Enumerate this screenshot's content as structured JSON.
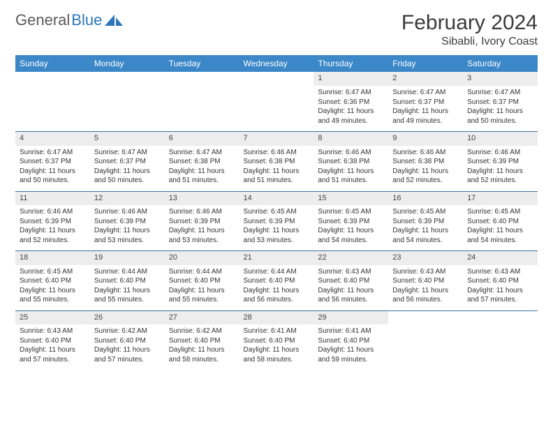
{
  "brand": {
    "part1": "General",
    "part2": "Blue"
  },
  "title": "February 2024",
  "location": "Sibabli, Ivory Coast",
  "colors": {
    "header_bg": "#3b87c8",
    "header_text": "#ffffff",
    "daynum_bg": "#ededed",
    "row_border": "#3b6fa0",
    "logo_gray": "#5a5a5a",
    "logo_blue": "#2d76bb"
  },
  "weekdays": [
    "Sunday",
    "Monday",
    "Tuesday",
    "Wednesday",
    "Thursday",
    "Friday",
    "Saturday"
  ],
  "weeks": [
    {
      "nums": [
        "",
        "",
        "",
        "",
        "1",
        "2",
        "3"
      ],
      "cells": [
        null,
        null,
        null,
        null,
        {
          "sunrise": "Sunrise: 6:47 AM",
          "sunset": "Sunset: 6:36 PM",
          "daylight1": "Daylight: 11 hours",
          "daylight2": "and 49 minutes."
        },
        {
          "sunrise": "Sunrise: 6:47 AM",
          "sunset": "Sunset: 6:37 PM",
          "daylight1": "Daylight: 11 hours",
          "daylight2": "and 49 minutes."
        },
        {
          "sunrise": "Sunrise: 6:47 AM",
          "sunset": "Sunset: 6:37 PM",
          "daylight1": "Daylight: 11 hours",
          "daylight2": "and 50 minutes."
        }
      ]
    },
    {
      "nums": [
        "4",
        "5",
        "6",
        "7",
        "8",
        "9",
        "10"
      ],
      "cells": [
        {
          "sunrise": "Sunrise: 6:47 AM",
          "sunset": "Sunset: 6:37 PM",
          "daylight1": "Daylight: 11 hours",
          "daylight2": "and 50 minutes."
        },
        {
          "sunrise": "Sunrise: 6:47 AM",
          "sunset": "Sunset: 6:37 PM",
          "daylight1": "Daylight: 11 hours",
          "daylight2": "and 50 minutes."
        },
        {
          "sunrise": "Sunrise: 6:47 AM",
          "sunset": "Sunset: 6:38 PM",
          "daylight1": "Daylight: 11 hours",
          "daylight2": "and 51 minutes."
        },
        {
          "sunrise": "Sunrise: 6:46 AM",
          "sunset": "Sunset: 6:38 PM",
          "daylight1": "Daylight: 11 hours",
          "daylight2": "and 51 minutes."
        },
        {
          "sunrise": "Sunrise: 6:46 AM",
          "sunset": "Sunset: 6:38 PM",
          "daylight1": "Daylight: 11 hours",
          "daylight2": "and 51 minutes."
        },
        {
          "sunrise": "Sunrise: 6:46 AM",
          "sunset": "Sunset: 6:38 PM",
          "daylight1": "Daylight: 11 hours",
          "daylight2": "and 52 minutes."
        },
        {
          "sunrise": "Sunrise: 6:46 AM",
          "sunset": "Sunset: 6:39 PM",
          "daylight1": "Daylight: 11 hours",
          "daylight2": "and 52 minutes."
        }
      ]
    },
    {
      "nums": [
        "11",
        "12",
        "13",
        "14",
        "15",
        "16",
        "17"
      ],
      "cells": [
        {
          "sunrise": "Sunrise: 6:46 AM",
          "sunset": "Sunset: 6:39 PM",
          "daylight1": "Daylight: 11 hours",
          "daylight2": "and 52 minutes."
        },
        {
          "sunrise": "Sunrise: 6:46 AM",
          "sunset": "Sunset: 6:39 PM",
          "daylight1": "Daylight: 11 hours",
          "daylight2": "and 53 minutes."
        },
        {
          "sunrise": "Sunrise: 6:46 AM",
          "sunset": "Sunset: 6:39 PM",
          "daylight1": "Daylight: 11 hours",
          "daylight2": "and 53 minutes."
        },
        {
          "sunrise": "Sunrise: 6:45 AM",
          "sunset": "Sunset: 6:39 PM",
          "daylight1": "Daylight: 11 hours",
          "daylight2": "and 53 minutes."
        },
        {
          "sunrise": "Sunrise: 6:45 AM",
          "sunset": "Sunset: 6:39 PM",
          "daylight1": "Daylight: 11 hours",
          "daylight2": "and 54 minutes."
        },
        {
          "sunrise": "Sunrise: 6:45 AM",
          "sunset": "Sunset: 6:39 PM",
          "daylight1": "Daylight: 11 hours",
          "daylight2": "and 54 minutes."
        },
        {
          "sunrise": "Sunrise: 6:45 AM",
          "sunset": "Sunset: 6:40 PM",
          "daylight1": "Daylight: 11 hours",
          "daylight2": "and 54 minutes."
        }
      ]
    },
    {
      "nums": [
        "18",
        "19",
        "20",
        "21",
        "22",
        "23",
        "24"
      ],
      "cells": [
        {
          "sunrise": "Sunrise: 6:45 AM",
          "sunset": "Sunset: 6:40 PM",
          "daylight1": "Daylight: 11 hours",
          "daylight2": "and 55 minutes."
        },
        {
          "sunrise": "Sunrise: 6:44 AM",
          "sunset": "Sunset: 6:40 PM",
          "daylight1": "Daylight: 11 hours",
          "daylight2": "and 55 minutes."
        },
        {
          "sunrise": "Sunrise: 6:44 AM",
          "sunset": "Sunset: 6:40 PM",
          "daylight1": "Daylight: 11 hours",
          "daylight2": "and 55 minutes."
        },
        {
          "sunrise": "Sunrise: 6:44 AM",
          "sunset": "Sunset: 6:40 PM",
          "daylight1": "Daylight: 11 hours",
          "daylight2": "and 56 minutes."
        },
        {
          "sunrise": "Sunrise: 6:43 AM",
          "sunset": "Sunset: 6:40 PM",
          "daylight1": "Daylight: 11 hours",
          "daylight2": "and 56 minutes."
        },
        {
          "sunrise": "Sunrise: 6:43 AM",
          "sunset": "Sunset: 6:40 PM",
          "daylight1": "Daylight: 11 hours",
          "daylight2": "and 56 minutes."
        },
        {
          "sunrise": "Sunrise: 6:43 AM",
          "sunset": "Sunset: 6:40 PM",
          "daylight1": "Daylight: 11 hours",
          "daylight2": "and 57 minutes."
        }
      ]
    },
    {
      "nums": [
        "25",
        "26",
        "27",
        "28",
        "29",
        "",
        ""
      ],
      "cells": [
        {
          "sunrise": "Sunrise: 6:43 AM",
          "sunset": "Sunset: 6:40 PM",
          "daylight1": "Daylight: 11 hours",
          "daylight2": "and 57 minutes."
        },
        {
          "sunrise": "Sunrise: 6:42 AM",
          "sunset": "Sunset: 6:40 PM",
          "daylight1": "Daylight: 11 hours",
          "daylight2": "and 57 minutes."
        },
        {
          "sunrise": "Sunrise: 6:42 AM",
          "sunset": "Sunset: 6:40 PM",
          "daylight1": "Daylight: 11 hours",
          "daylight2": "and 58 minutes."
        },
        {
          "sunrise": "Sunrise: 6:41 AM",
          "sunset": "Sunset: 6:40 PM",
          "daylight1": "Daylight: 11 hours",
          "daylight2": "and 58 minutes."
        },
        {
          "sunrise": "Sunrise: 6:41 AM",
          "sunset": "Sunset: 6:40 PM",
          "daylight1": "Daylight: 11 hours",
          "daylight2": "and 59 minutes."
        },
        null,
        null
      ]
    }
  ]
}
